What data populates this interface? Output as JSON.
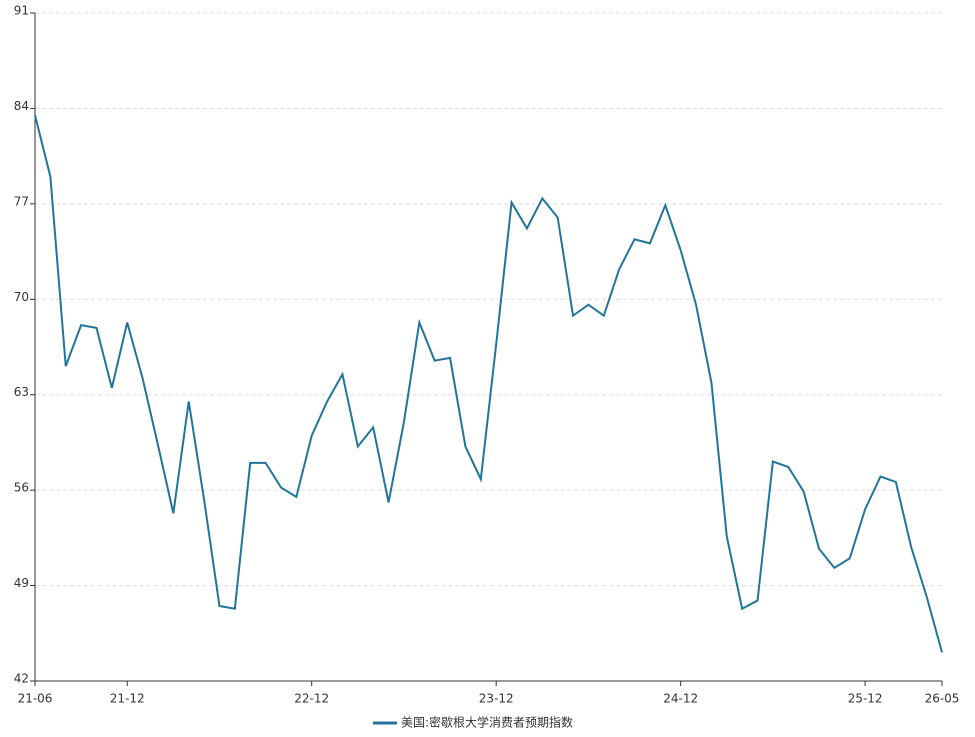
{
  "chart_data": {
    "type": "line",
    "categories": [
      "21-06",
      null,
      null,
      null,
      null,
      null,
      "21-12",
      null,
      null,
      null,
      null,
      null,
      null,
      null,
      null,
      null,
      null,
      null,
      "22-12",
      null,
      null,
      null,
      null,
      null,
      null,
      null,
      null,
      null,
      null,
      null,
      "23-12",
      null,
      null,
      null,
      null,
      null,
      null,
      null,
      null,
      null,
      null,
      null,
      "24-12",
      null,
      null,
      null,
      null,
      null,
      null,
      null,
      null,
      null,
      null,
      null,
      "25-12",
      null,
      null,
      null,
      null,
      "26-05"
    ],
    "series": [
      {
        "name": "美国:密歇根大学消费者预期指数",
        "color": "#21759b",
        "values": [
          83.5,
          79.0,
          65.1,
          68.1,
          67.9,
          63.5,
          68.3,
          64.2,
          59.3,
          54.3,
          62.5,
          55.3,
          47.5,
          47.3,
          58.0,
          58.0,
          56.2,
          55.5,
          60.0,
          62.5,
          64.5,
          59.2,
          60.6,
          55.1,
          61.0,
          68.3,
          65.5,
          65.7,
          59.2,
          56.8,
          66.7,
          77.1,
          75.2,
          77.4,
          76.0,
          68.8,
          69.6,
          68.8,
          72.2,
          74.4,
          74.1,
          76.9,
          73.6,
          69.6,
          63.9,
          52.6,
          47.3,
          47.9,
          58.1,
          57.7,
          55.9,
          51.7,
          50.3,
          51.0,
          54.6,
          57.0,
          56.6,
          51.8,
          48.2,
          44.1
        ]
      }
    ],
    "ylim": [
      42,
      91
    ],
    "yticks": [
      42,
      49,
      56,
      63,
      70,
      77,
      84,
      91
    ],
    "grid": true,
    "legend": "bottom"
  }
}
